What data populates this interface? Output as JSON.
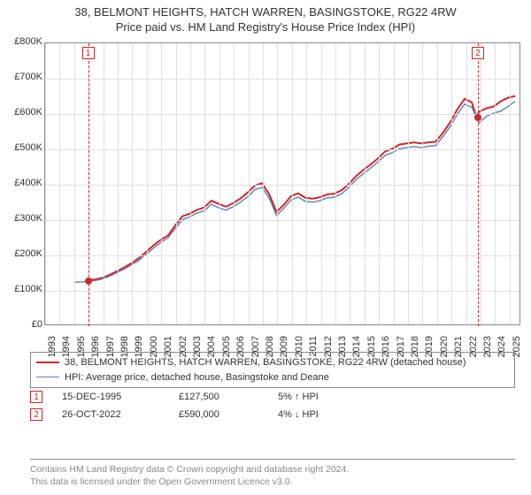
{
  "title_line1": "38, BELMONT HEIGHTS, HATCH WARREN, BASINGSTOKE, RG22 4RW",
  "title_line2": "Price paid vs. HM Land Registry's House Price Index (HPI)",
  "chart": {
    "type": "line",
    "background_color": "#ffffff",
    "grid_color": "#e0e0e0",
    "axis_color": "#888888",
    "xlim": [
      1993,
      2025.8
    ],
    "ylim": [
      0,
      800000
    ],
    "ytick_step": 100000,
    "ytick_labels": [
      "£0",
      "£100K",
      "£200K",
      "£300K",
      "£400K",
      "£500K",
      "£600K",
      "£700K",
      "£800K"
    ],
    "xtick_step": 1,
    "xtick_labels": [
      "1993",
      "1994",
      "1995",
      "1996",
      "1997",
      "1998",
      "1999",
      "2000",
      "2001",
      "2002",
      "2003",
      "2004",
      "2005",
      "2006",
      "2007",
      "2008",
      "2009",
      "2010",
      "2011",
      "2012",
      "2013",
      "2014",
      "2015",
      "2016",
      "2017",
      "2018",
      "2019",
      "2020",
      "2021",
      "2022",
      "2023",
      "2024",
      "2025"
    ],
    "series": [
      {
        "name": "38, BELMONT HEIGHTS, HATCH WARREN, BASINGSTOKE, RG22 4RW (detached house)",
        "color": "#cf2727",
        "line_width": 2,
        "x": [
          1995.96,
          1996.5,
          1997,
          1997.5,
          1998,
          1998.5,
          1999,
          1999.5,
          2000,
          2000.5,
          2001,
          2001.5,
          2002,
          2002.5,
          2003,
          2003.5,
          2004,
          2004.5,
          2005,
          2005.5,
          2006,
          2006.5,
          2007,
          2007.5,
          2008,
          2008.5,
          2009,
          2009.5,
          2010,
          2010.5,
          2011,
          2011.5,
          2012,
          2012.5,
          2013,
          2013.5,
          2014,
          2014.5,
          2015,
          2015.5,
          2016,
          2016.5,
          2017,
          2017.5,
          2018,
          2018.5,
          2019,
          2019.5,
          2020,
          2020.5,
          2021,
          2021.5,
          2022,
          2022.5,
          2022.82,
          2023,
          2023.5,
          2024,
          2024.5,
          2025,
          2025.5
        ],
        "y": [
          127500,
          128000,
          133000,
          142000,
          152000,
          163000,
          175000,
          189000,
          207000,
          225000,
          241000,
          253000,
          282000,
          308000,
          315000,
          326000,
          333000,
          352000,
          343000,
          335000,
          345000,
          358000,
          375000,
          395000,
          402000,
          370000,
          320000,
          340000,
          365000,
          373000,
          360000,
          358000,
          362000,
          370000,
          372000,
          382000,
          400000,
          422000,
          440000,
          455000,
          472000,
          492000,
          500000,
          512000,
          515000,
          518000,
          515000,
          518000,
          520000,
          545000,
          575000,
          612000,
          642000,
          632000,
          590000,
          605000,
          615000,
          620000,
          635000,
          645000,
          650000
        ]
      },
      {
        "name": "HPI: Average price, detached house, Basingstoke and Deane",
        "color": "#5b7fbf",
        "line_width": 1.4,
        "x": [
          1995.0,
          1995.5,
          1996,
          1996.5,
          1997,
          1997.5,
          1998,
          1998.5,
          1999,
          1999.5,
          2000,
          2000.5,
          2001,
          2001.5,
          2002,
          2002.5,
          2003,
          2003.5,
          2004,
          2004.5,
          2005,
          2005.5,
          2006,
          2006.5,
          2007,
          2007.5,
          2008,
          2008.5,
          2009,
          2009.5,
          2010,
          2010.5,
          2011,
          2011.5,
          2012,
          2012.5,
          2013,
          2013.5,
          2014,
          2014.5,
          2015,
          2015.5,
          2016,
          2016.5,
          2017,
          2017.5,
          2018,
          2018.5,
          2019,
          2019.5,
          2020,
          2020.5,
          2021,
          2021.5,
          2022,
          2022.5,
          2023,
          2023.5,
          2024,
          2024.5,
          2025,
          2025.5
        ],
        "y": [
          120000,
          121000,
          123000,
          125000,
          130000,
          138000,
          148000,
          158000,
          170000,
          183000,
          200000,
          217000,
          233000,
          247000,
          273000,
          298000,
          306000,
          317000,
          323000,
          342000,
          332000,
          325000,
          335000,
          348000,
          363000,
          383000,
          390000,
          359000,
          310000,
          330000,
          354000,
          362000,
          350000,
          348000,
          352000,
          360000,
          362000,
          372000,
          390000,
          412000,
          429000,
          445000,
          462000,
          481000,
          489000,
          500000,
          503000,
          506000,
          503000,
          507000,
          509000,
          534000,
          563000,
          598000,
          627000,
          618000,
          573000,
          592000,
          601000,
          607000,
          620000,
          635000
        ]
      }
    ],
    "markers": [
      {
        "id": "1",
        "x": 1995.96,
        "y": 127500
      },
      {
        "id": "2",
        "x": 2022.82,
        "y": 590000
      }
    ],
    "marker_color": "#cf2727",
    "label_fontsize": 11
  },
  "legend": {
    "entries": [
      {
        "color": "#cf2727",
        "label": "38, BELMONT HEIGHTS, HATCH WARREN, BASINGSTOKE, RG22 4RW (detached house)"
      },
      {
        "color": "#5b7fbf",
        "label": "HPI: Average price, detached house, Basingstoke and Deane"
      }
    ]
  },
  "sales": [
    {
      "id": "1",
      "date": "15-DEC-1995",
      "price": "£127,500",
      "pct": "5% ↑ HPI"
    },
    {
      "id": "2",
      "date": "26-OCT-2022",
      "price": "£590,000",
      "pct": "4% ↓ HPI"
    }
  ],
  "footnote_line1": "Contains HM Land Registry data © Crown copyright and database right 2024.",
  "footnote_line2": "This data is licensed under the Open Government Licence v3.0."
}
